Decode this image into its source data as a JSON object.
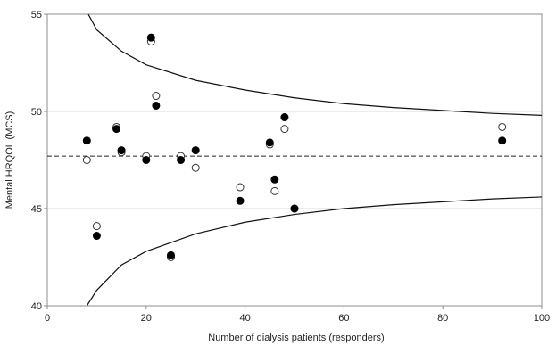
{
  "chart_data": {
    "type": "scatter",
    "title": "",
    "xlabel": "Number of dialysis patients (responders)",
    "ylabel": "Mental HRQOL (MCS)",
    "xlim": [
      0,
      100
    ],
    "ylim": [
      40,
      55
    ],
    "x_ticks": [
      "0",
      "20",
      "40",
      "60",
      "80",
      "100"
    ],
    "y_ticks": [
      "40",
      "45",
      "50",
      "55"
    ],
    "grid": "horizontal",
    "legend": "none",
    "reference_line": {
      "y": 47.7,
      "style": "dashed"
    },
    "control_limits": {
      "style": "solid",
      "upper": [
        {
          "x": 8.3,
          "y": 55.0
        },
        {
          "x": 10,
          "y": 54.2
        },
        {
          "x": 15,
          "y": 53.1
        },
        {
          "x": 20,
          "y": 52.4
        },
        {
          "x": 30,
          "y": 51.6
        },
        {
          "x": 40,
          "y": 51.1
        },
        {
          "x": 50,
          "y": 50.7
        },
        {
          "x": 60,
          "y": 50.4
        },
        {
          "x": 70,
          "y": 50.2
        },
        {
          "x": 80,
          "y": 50.05
        },
        {
          "x": 90,
          "y": 49.9
        },
        {
          "x": 100,
          "y": 49.8
        }
      ],
      "lower": [
        {
          "x": 8,
          "y": 40.0
        },
        {
          "x": 10,
          "y": 40.8
        },
        {
          "x": 15,
          "y": 42.1
        },
        {
          "x": 20,
          "y": 42.8
        },
        {
          "x": 30,
          "y": 43.7
        },
        {
          "x": 40,
          "y": 44.3
        },
        {
          "x": 50,
          "y": 44.7
        },
        {
          "x": 60,
          "y": 45.0
        },
        {
          "x": 70,
          "y": 45.2
        },
        {
          "x": 80,
          "y": 45.35
        },
        {
          "x": 90,
          "y": 45.5
        },
        {
          "x": 100,
          "y": 45.6
        }
      ]
    },
    "series": [
      {
        "marker": "filled-circle",
        "points": [
          {
            "x": 8,
            "y": 48.5
          },
          {
            "x": 10,
            "y": 43.6
          },
          {
            "x": 14,
            "y": 49.1
          },
          {
            "x": 15,
            "y": 48.0
          },
          {
            "x": 20,
            "y": 47.5
          },
          {
            "x": 21,
            "y": 53.8
          },
          {
            "x": 22,
            "y": 50.3
          },
          {
            "x": 25,
            "y": 42.6
          },
          {
            "x": 27,
            "y": 47.5
          },
          {
            "x": 30,
            "y": 48.0
          },
          {
            "x": 39,
            "y": 45.4
          },
          {
            "x": 45,
            "y": 48.4
          },
          {
            "x": 46,
            "y": 46.5
          },
          {
            "x": 48,
            "y": 49.7
          },
          {
            "x": 50,
            "y": 45.0
          },
          {
            "x": 92,
            "y": 48.5
          }
        ]
      },
      {
        "marker": "open-circle",
        "points": [
          {
            "x": 8,
            "y": 47.5
          },
          {
            "x": 10,
            "y": 44.1
          },
          {
            "x": 14,
            "y": 49.2
          },
          {
            "x": 15,
            "y": 47.9
          },
          {
            "x": 20,
            "y": 47.7
          },
          {
            "x": 21,
            "y": 53.6
          },
          {
            "x": 22,
            "y": 50.8
          },
          {
            "x": 25,
            "y": 42.5
          },
          {
            "x": 27,
            "y": 47.7
          },
          {
            "x": 30,
            "y": 47.1
          },
          {
            "x": 39,
            "y": 46.1
          },
          {
            "x": 45,
            "y": 48.3
          },
          {
            "x": 46,
            "y": 45.9
          },
          {
            "x": 48,
            "y": 49.1
          },
          {
            "x": 50,
            "y": 45.0
          },
          {
            "x": 92,
            "y": 49.2
          }
        ]
      }
    ]
  }
}
